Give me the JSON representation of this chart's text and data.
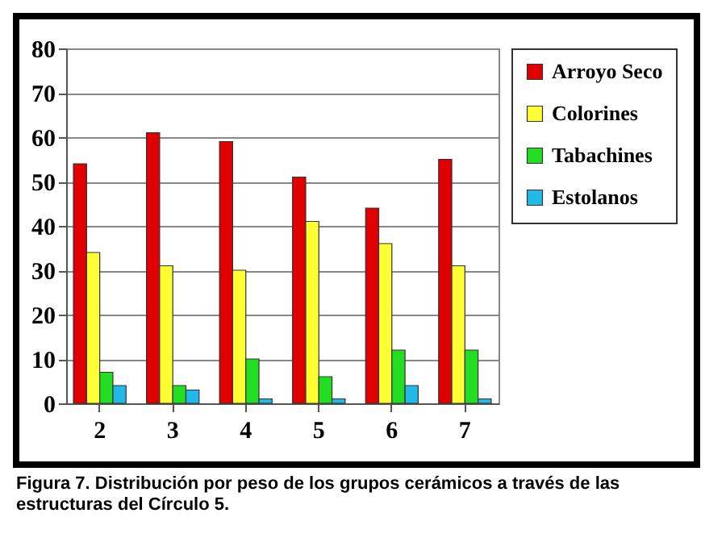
{
  "chart_data": {
    "type": "bar",
    "categories": [
      "2",
      "3",
      "4",
      "5",
      "6",
      "7"
    ],
    "series": [
      {
        "name": "Arroyo Seco",
        "color": "#e00000",
        "values": [
          54,
          61,
          59,
          51,
          44,
          55
        ]
      },
      {
        "name": "Colorines",
        "color": "#ffff33",
        "values": [
          34,
          31,
          30,
          41,
          36,
          31
        ]
      },
      {
        "name": "Tabachines",
        "color": "#22dd22",
        "values": [
          7,
          4,
          10,
          6,
          12,
          12
        ]
      },
      {
        "name": "Estolanos",
        "color": "#22b8e8",
        "values": [
          4,
          3,
          1,
          1,
          4,
          1
        ]
      }
    ],
    "ylim": [
      0,
      80
    ],
    "yticks": [
      0,
      10,
      20,
      30,
      40,
      50,
      60,
      70,
      80
    ],
    "grid": "y",
    "legend": "right",
    "annotations": [
      "Figura 7.  Distribución por peso de los grupos cerámicos a través de las estructuras del Círculo 5."
    ]
  }
}
